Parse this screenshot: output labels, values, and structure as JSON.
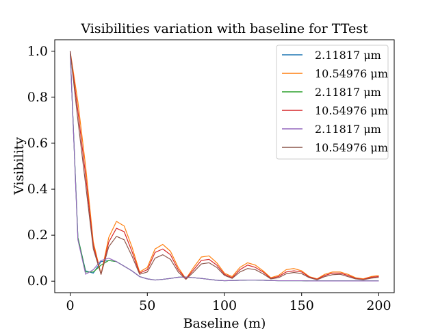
{
  "chart_data": {
    "type": "line",
    "title": "Visibilities variation with baseline for TTest",
    "xlabel": "Baseline (m)",
    "ylabel": "Visibility",
    "xlim": [
      -10,
      210
    ],
    "ylim": [
      -0.05,
      1.05
    ],
    "xticks": [
      0,
      50,
      100,
      150,
      200
    ],
    "yticks": [
      0.0,
      0.2,
      0.4,
      0.6,
      0.8,
      1.0
    ],
    "xtick_labels": [
      "0",
      "50",
      "100",
      "150",
      "200"
    ],
    "ytick_labels": [
      "0.0",
      "0.2",
      "0.4",
      "0.6",
      "0.8",
      "1.0"
    ],
    "grid": false,
    "legend_position": "top-right",
    "x": [
      0,
      5,
      10,
      15,
      20,
      25,
      30,
      35,
      40,
      45,
      50,
      55,
      60,
      65,
      70,
      75,
      80,
      85,
      90,
      95,
      100,
      105,
      110,
      115,
      120,
      125,
      130,
      135,
      140,
      145,
      150,
      155,
      160,
      165,
      170,
      175,
      180,
      185,
      190,
      195,
      200
    ],
    "series": [
      {
        "name": "2.11817 μm",
        "color": "#1f77b4",
        "values": [
          1.0,
          0.19,
          0.045,
          0.035,
          0.085,
          0.09,
          0.085,
          0.065,
          0.045,
          0.02,
          0.01,
          0.005,
          0.008,
          0.012,
          0.017,
          0.018,
          0.015,
          0.012,
          0.008,
          0.004,
          0.002,
          0.003,
          0.004,
          0.005,
          0.005,
          0.004,
          0.003,
          0.002,
          0.002,
          0.002,
          0.002,
          0.001,
          0.001,
          0.001,
          0.001,
          0.001,
          0.001,
          0.001,
          0.001,
          0.001,
          0.001
        ]
      },
      {
        "name": "10.54976 μm",
        "color": "#ff7f0e",
        "values": [
          1.0,
          0.78,
          0.5,
          0.17,
          0.03,
          0.19,
          0.26,
          0.24,
          0.15,
          0.04,
          0.06,
          0.14,
          0.16,
          0.13,
          0.06,
          0.01,
          0.06,
          0.105,
          0.11,
          0.08,
          0.035,
          0.02,
          0.06,
          0.08,
          0.07,
          0.045,
          0.015,
          0.025,
          0.05,
          0.055,
          0.045,
          0.02,
          0.01,
          0.03,
          0.04,
          0.04,
          0.03,
          0.015,
          0.01,
          0.02,
          0.025
        ]
      },
      {
        "name": "2.11817 μm",
        "color": "#2ca02c",
        "values": [
          1.0,
          0.19,
          0.04,
          0.04,
          0.07,
          0.09,
          0.085,
          0.065,
          0.045,
          0.02,
          0.01,
          0.005,
          0.008,
          0.012,
          0.017,
          0.018,
          0.015,
          0.012,
          0.008,
          0.004,
          0.002,
          0.003,
          0.004,
          0.005,
          0.005,
          0.004,
          0.003,
          0.002,
          0.002,
          0.002,
          0.002,
          0.001,
          0.001,
          0.001,
          0.001,
          0.001,
          0.001,
          0.001,
          0.001,
          0.001,
          0.001
        ]
      },
      {
        "name": "10.54976 μm",
        "color": "#d62728",
        "values": [
          1.0,
          0.74,
          0.46,
          0.155,
          0.03,
          0.17,
          0.23,
          0.215,
          0.13,
          0.035,
          0.05,
          0.125,
          0.14,
          0.115,
          0.05,
          0.01,
          0.05,
          0.09,
          0.095,
          0.07,
          0.03,
          0.015,
          0.05,
          0.07,
          0.06,
          0.04,
          0.012,
          0.02,
          0.04,
          0.045,
          0.04,
          0.018,
          0.008,
          0.025,
          0.035,
          0.035,
          0.025,
          0.012,
          0.008,
          0.017,
          0.02
        ]
      },
      {
        "name": "2.11817 μm",
        "color": "#9467bd",
        "values": [
          1.0,
          0.18,
          0.03,
          0.05,
          0.09,
          0.1,
          0.085,
          0.065,
          0.045,
          0.02,
          0.01,
          0.005,
          0.008,
          0.012,
          0.017,
          0.018,
          0.015,
          0.012,
          0.008,
          0.004,
          0.002,
          0.003,
          0.004,
          0.005,
          0.005,
          0.004,
          0.003,
          0.002,
          0.002,
          0.002,
          0.002,
          0.001,
          0.001,
          0.001,
          0.001,
          0.001,
          0.001,
          0.001,
          0.001,
          0.001,
          0.001
        ]
      },
      {
        "name": "10.54976 μm",
        "color": "#8c564b",
        "values": [
          1.0,
          0.7,
          0.42,
          0.14,
          0.03,
          0.15,
          0.195,
          0.18,
          0.11,
          0.03,
          0.04,
          0.1,
          0.115,
          0.095,
          0.04,
          0.008,
          0.04,
          0.075,
          0.08,
          0.06,
          0.025,
          0.012,
          0.04,
          0.055,
          0.05,
          0.032,
          0.01,
          0.015,
          0.032,
          0.038,
          0.033,
          0.015,
          0.006,
          0.02,
          0.028,
          0.03,
          0.02,
          0.01,
          0.006,
          0.013,
          0.017
        ]
      }
    ]
  }
}
